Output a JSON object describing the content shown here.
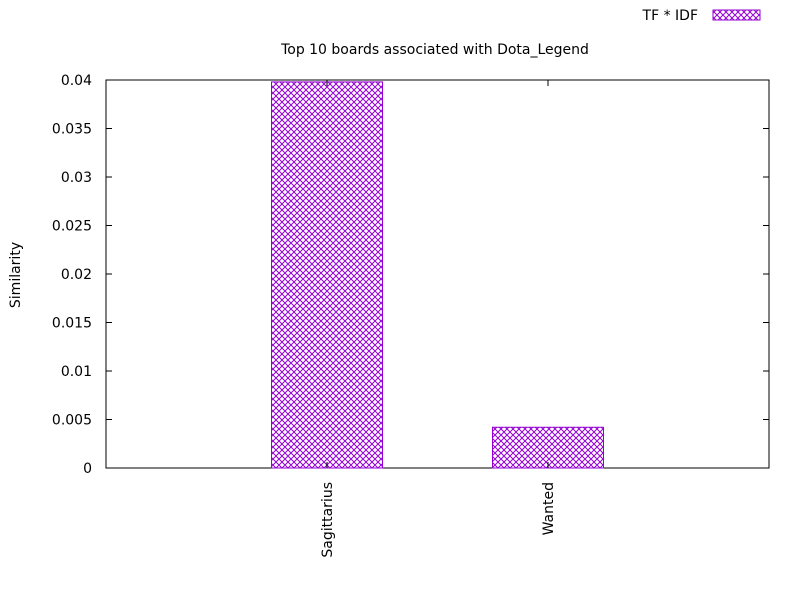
{
  "chart_data": {
    "type": "bar",
    "title": "Top 10 boards associated with Dota_Legend",
    "ylabel": "Similarity",
    "xlabel": "",
    "categories": [
      "Sagittarius",
      "Wanted"
    ],
    "series": [
      {
        "name": "TF * IDF",
        "values": [
          0.0398,
          0.0042
        ]
      }
    ],
    "ylim": [
      0,
      0.04
    ],
    "yticks": [
      "0",
      "0.005",
      "0.01",
      "0.015",
      "0.02",
      "0.025",
      "0.03",
      "0.035",
      "0.04"
    ],
    "grid": false,
    "legend_position": "top-right",
    "colors": {
      "bar": "#9400d3",
      "axis": "#000000"
    }
  }
}
